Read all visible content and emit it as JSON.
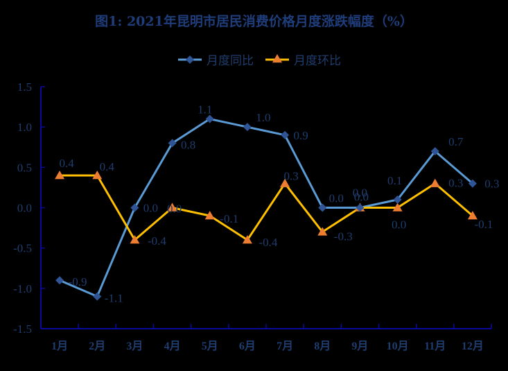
{
  "title": "图1: 2021年昆明市居民消费价格月度涨跌幅度（%）",
  "colors": {
    "background": "#000000",
    "text": "#1F3D6E",
    "title": "#1F3D7A",
    "axis": "#0A0A9A",
    "yoy_line": "#5B9BD5",
    "yoy_marker": "#2F5597",
    "mom_line": "#FFC000",
    "mom_marker": "#ED7D31"
  },
  "legend": {
    "items": [
      {
        "label": "月度同比",
        "marker": "diamond-icon"
      },
      {
        "label": "月度环比",
        "marker": "triangle-icon"
      }
    ]
  },
  "chart_data": {
    "type": "line",
    "title": "图1: 2021年昆明市居民消费价格月度涨跌幅度（%）",
    "xlabel": "",
    "ylabel": "",
    "categories": [
      "1月",
      "2月",
      "3月",
      "4月",
      "5月",
      "6月",
      "7月",
      "8月",
      "9月",
      "10月",
      "11月",
      "12月"
    ],
    "series": [
      {
        "name": "月度同比",
        "values": [
          -0.9,
          -1.1,
          0.0,
          0.8,
          1.1,
          1.0,
          0.9,
          0.0,
          0.0,
          0.1,
          0.7,
          0.3
        ],
        "marker": "diamond"
      },
      {
        "name": "月度环比",
        "values": [
          0.4,
          0.4,
          -0.4,
          0.0,
          -0.1,
          -0.4,
          0.3,
          -0.3,
          0.0,
          0.0,
          0.3,
          -0.1
        ],
        "marker": "triangle"
      }
    ],
    "ylim": [
      -1.5,
      1.5
    ],
    "yticks": [
      "1.5",
      "1.0",
      "0.5",
      "0.0",
      "-0.5",
      "-1.0",
      "-1.5"
    ],
    "ytick_values": [
      1.5,
      1.0,
      0.5,
      0.0,
      -0.5,
      -1.0,
      -1.5
    ],
    "grid": false,
    "legend_position": "top"
  }
}
